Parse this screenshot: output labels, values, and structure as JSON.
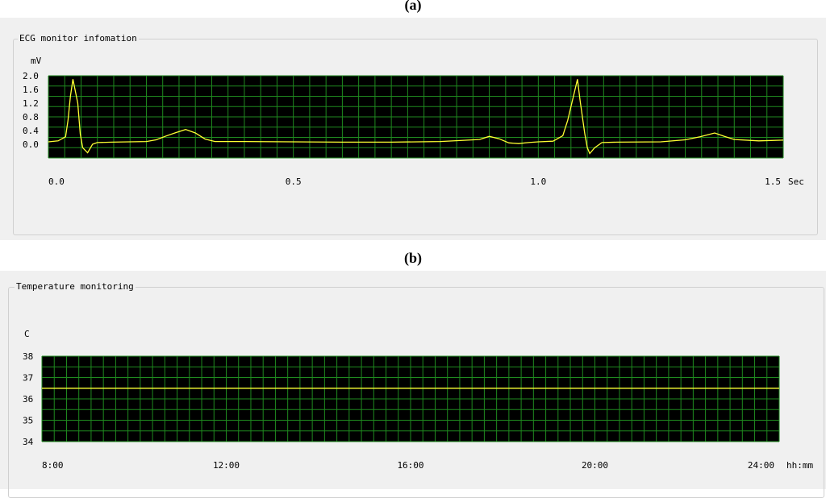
{
  "panels": {
    "a": {
      "letter": "(a)",
      "title": "ECG monitor infomation"
    },
    "b": {
      "letter": "(b)",
      "title": "Temperature monitoring"
    }
  },
  "colors": {
    "plot_bg": "#000000",
    "grid": "#1f8a1f",
    "trace": "#ffff33",
    "panel_bg": "#f0f0f0"
  },
  "chart_data": [
    {
      "type": "line",
      "ylabel": "mV",
      "xlabel": "Sec",
      "xlim": [
        0,
        1.5
      ],
      "ylim": [
        -0.4,
        2.0
      ],
      "y_ticks": [
        "2.0",
        "1.6",
        "1.2",
        "0.8",
        "0.4",
        "0.0"
      ],
      "x_ticks": [
        "0.0",
        "0.5",
        "1.0",
        "1.5"
      ],
      "grid": true,
      "series": [
        {
          "x": [
            0.0,
            0.02,
            0.035,
            0.04,
            0.045,
            0.05,
            0.06,
            0.065,
            0.07,
            0.08,
            0.09,
            0.1,
            0.13,
            0.2,
            0.22,
            0.24,
            0.26,
            0.28,
            0.3,
            0.32,
            0.34,
            0.4,
            0.5,
            0.6,
            0.7,
            0.8,
            0.88,
            0.9,
            0.92,
            0.94,
            0.96,
            0.98,
            1.0,
            1.03,
            1.05,
            1.06,
            1.075,
            1.08,
            1.085,
            1.095,
            1.1,
            1.105,
            1.115,
            1.13,
            1.16,
            1.25,
            1.3,
            1.33,
            1.36,
            1.38,
            1.4,
            1.45,
            1.5
          ],
          "y": [
            0.07,
            0.1,
            0.22,
            0.7,
            1.4,
            1.9,
            1.2,
            0.3,
            -0.1,
            -0.25,
            0.0,
            0.05,
            0.06,
            0.08,
            0.13,
            0.24,
            0.34,
            0.43,
            0.33,
            0.15,
            0.08,
            0.08,
            0.07,
            0.06,
            0.06,
            0.08,
            0.14,
            0.23,
            0.16,
            0.04,
            0.02,
            0.05,
            0.07,
            0.09,
            0.25,
            0.7,
            1.6,
            1.9,
            1.3,
            0.3,
            -0.1,
            -0.27,
            -0.1,
            0.05,
            0.06,
            0.07,
            0.13,
            0.22,
            0.33,
            0.23,
            0.14,
            0.1,
            0.12
          ]
        }
      ]
    },
    {
      "type": "line",
      "ylabel": "C",
      "xlabel": "hh:mm",
      "xlim": [
        8,
        24
      ],
      "ylim": [
        34,
        38
      ],
      "y_ticks": [
        "38",
        "37",
        "36",
        "35",
        "34"
      ],
      "x_ticks": [
        "8:00",
        "12:00",
        "16:00",
        "20:00",
        "24:00"
      ],
      "grid": true,
      "series": [
        {
          "x": [
            8,
            24
          ],
          "y": [
            36.5,
            36.5
          ]
        }
      ]
    }
  ]
}
